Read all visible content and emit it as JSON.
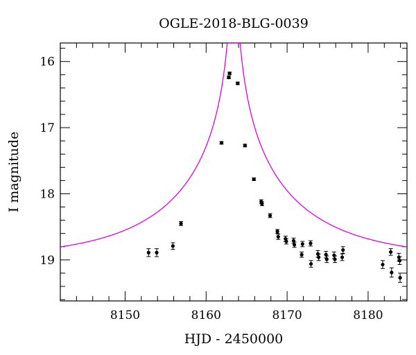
{
  "chart_data": {
    "type": "scatter",
    "title": "OGLE-2018-BLG-0039",
    "xlabel": "HJD - 2450000",
    "ylabel": "I magnitude",
    "xlim": [
      8142.0,
      8184.8
    ],
    "ylim": [
      19.62,
      15.72
    ],
    "y_inverted": true,
    "x_ticks": [
      8150,
      8160,
      8170,
      8180
    ],
    "y_ticks": [
      16,
      17,
      18,
      19
    ],
    "x_minor_step": 2,
    "y_minor_step": 0.2,
    "grid": false,
    "colors": {
      "points": "#000000",
      "model": "#e100e1",
      "axes": "#000000"
    },
    "model": {
      "name": "",
      "t0": 8163.4,
      "u0": 0.0025,
      "tE": 16.0,
      "baseline": 18.98
    },
    "series": [
      {
        "name": "",
        "points": [
          {
            "x": 8152.9,
            "y": 18.89,
            "err": 0.06
          },
          {
            "x": 8153.9,
            "y": 18.89,
            "err": 0.06
          },
          {
            "x": 8155.9,
            "y": 18.79,
            "err": 0.05
          },
          {
            "x": 8156.9,
            "y": 18.45,
            "err": 0.03
          },
          {
            "x": 8161.9,
            "y": 17.23,
            "err": 0.02
          },
          {
            "x": 8162.8,
            "y": 16.24,
            "err": 0.02
          },
          {
            "x": 8162.9,
            "y": 16.18,
            "err": 0.02
          },
          {
            "x": 8163.9,
            "y": 16.33,
            "err": 0.02
          },
          {
            "x": 8164.8,
            "y": 17.27,
            "err": 0.02
          },
          {
            "x": 8165.9,
            "y": 17.78,
            "err": 0.02
          },
          {
            "x": 8166.8,
            "y": 18.12,
            "err": 0.03
          },
          {
            "x": 8166.9,
            "y": 18.15,
            "err": 0.03
          },
          {
            "x": 8167.9,
            "y": 18.33,
            "err": 0.03
          },
          {
            "x": 8168.8,
            "y": 18.57,
            "err": 0.03
          },
          {
            "x": 8168.9,
            "y": 18.65,
            "err": 0.04
          },
          {
            "x": 8169.8,
            "y": 18.68,
            "err": 0.04
          },
          {
            "x": 8169.9,
            "y": 18.72,
            "err": 0.04
          },
          {
            "x": 8170.8,
            "y": 18.71,
            "err": 0.04
          },
          {
            "x": 8170.9,
            "y": 18.77,
            "err": 0.04
          },
          {
            "x": 8171.8,
            "y": 18.92,
            "err": 0.04
          },
          {
            "x": 8171.9,
            "y": 18.76,
            "err": 0.04
          },
          {
            "x": 8172.9,
            "y": 18.75,
            "err": 0.04
          },
          {
            "x": 8172.95,
            "y": 19.06,
            "err": 0.05
          },
          {
            "x": 8173.8,
            "y": 18.91,
            "err": 0.05
          },
          {
            "x": 8173.9,
            "y": 18.96,
            "err": 0.05
          },
          {
            "x": 8174.8,
            "y": 18.92,
            "err": 0.05
          },
          {
            "x": 8174.9,
            "y": 18.99,
            "err": 0.05
          },
          {
            "x": 8175.8,
            "y": 18.93,
            "err": 0.05
          },
          {
            "x": 8175.9,
            "y": 18.99,
            "err": 0.05
          },
          {
            "x": 8176.8,
            "y": 18.96,
            "err": 0.05
          },
          {
            "x": 8176.9,
            "y": 18.85,
            "err": 0.05
          },
          {
            "x": 8181.8,
            "y": 19.07,
            "err": 0.06
          },
          {
            "x": 8182.8,
            "y": 18.88,
            "err": 0.05
          },
          {
            "x": 8182.9,
            "y": 19.19,
            "err": 0.07
          },
          {
            "x": 8183.8,
            "y": 18.96,
            "err": 0.06
          },
          {
            "x": 8183.9,
            "y": 19.01,
            "err": 0.06
          },
          {
            "x": 8183.95,
            "y": 19.27,
            "err": 0.07
          }
        ]
      }
    ]
  }
}
